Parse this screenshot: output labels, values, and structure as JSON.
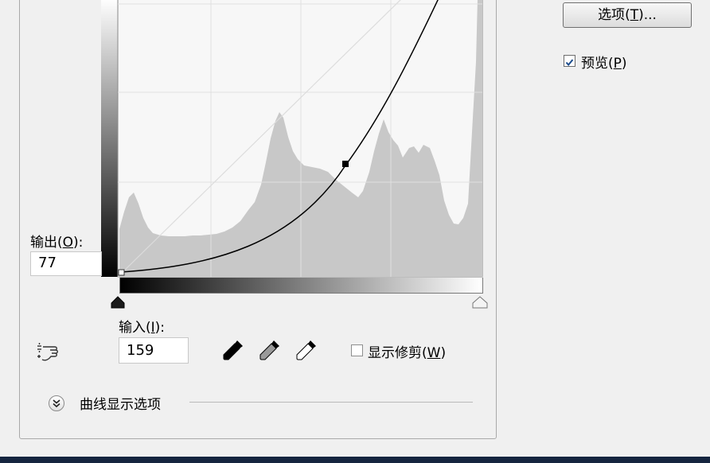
{
  "output": {
    "label": "输出",
    "key": "O",
    "value": "77"
  },
  "input": {
    "label": "输入",
    "key": "I",
    "value": "159"
  },
  "options_button": {
    "label": "选项",
    "key": "T"
  },
  "preview": {
    "label": "预览",
    "key": "P",
    "checked": true
  },
  "show_clipping": {
    "label": "显示修剪",
    "key": "W",
    "checked": false
  },
  "curve_display_options": {
    "label": "曲线显示选项"
  },
  "tools": {
    "on_image_adjust": "hand-point-adjust-icon",
    "black_point": "black-eyedropper-icon",
    "gray_point": "gray-eyedropper-icon",
    "white_point": "white-eyedropper-icon"
  },
  "colors": {
    "accent": "#1a4b8c",
    "histogram": "#c8c8c8",
    "curve": "#000000"
  }
}
